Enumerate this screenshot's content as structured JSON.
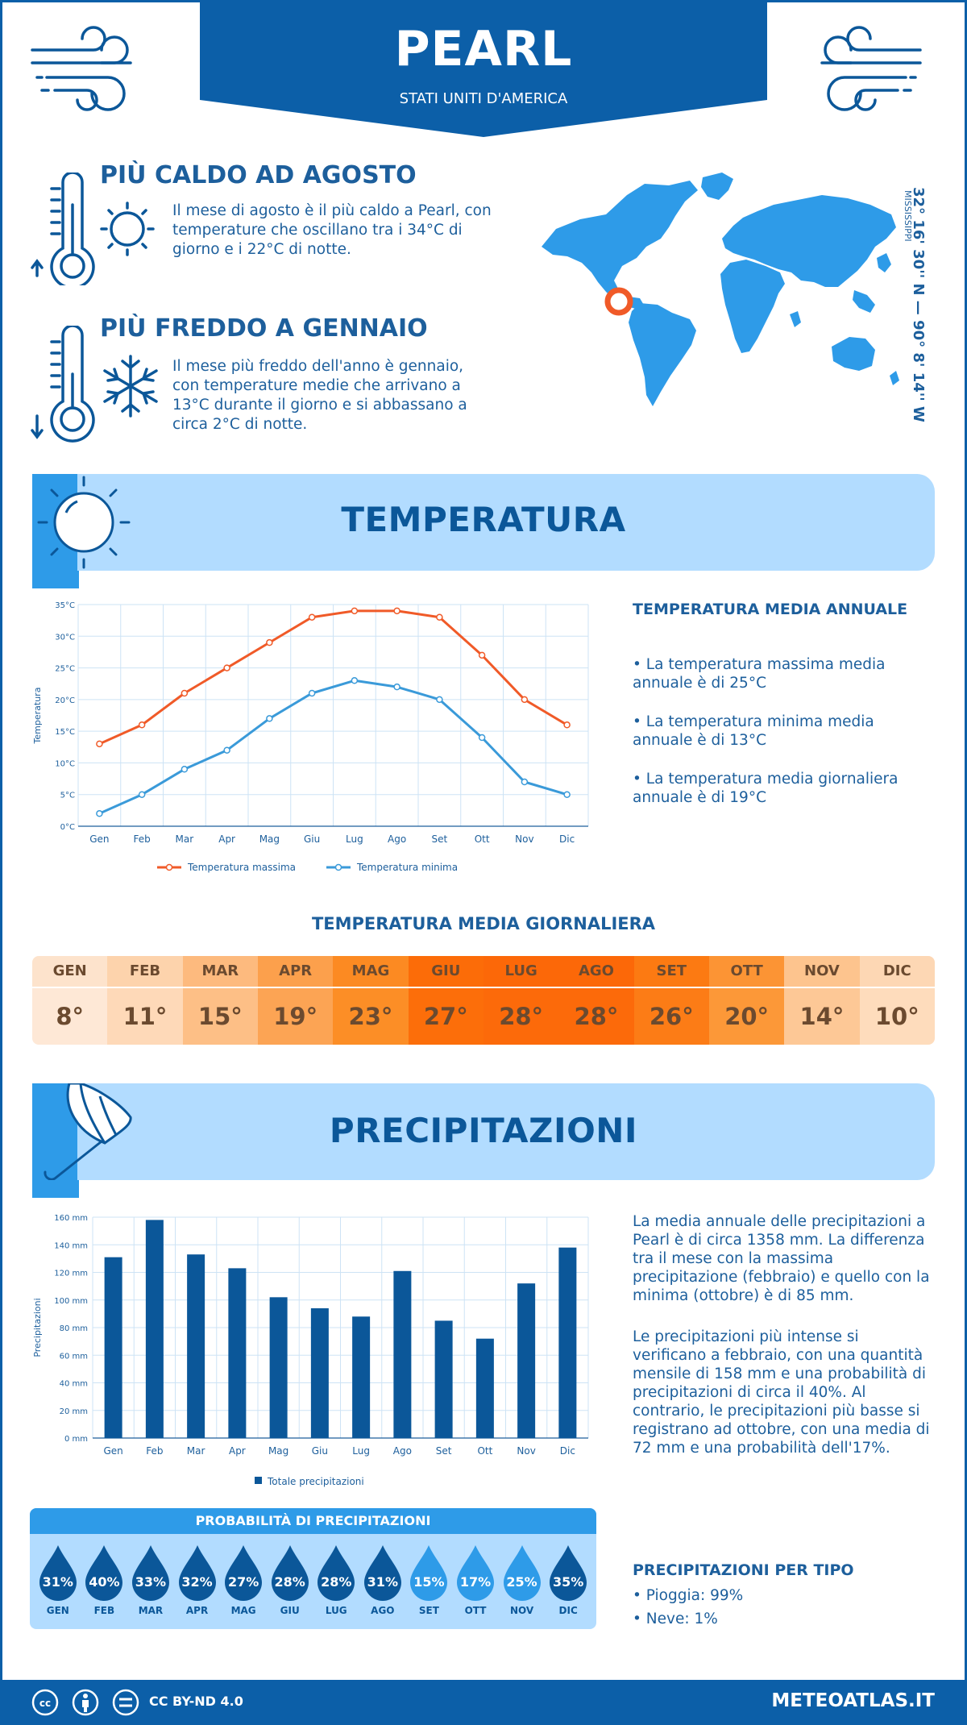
{
  "header": {
    "city": "PEARL",
    "country": "STATI UNITI D'AMERICA"
  },
  "location": {
    "coords": "32° 16' 30'' N — 90° 8' 14'' W",
    "state": "MISSISSIPPI"
  },
  "hottest": {
    "title": "PIÙ CALDO AD AGOSTO",
    "text": "Il mese di agosto è il più caldo a Pearl, con temperature che oscillano tra i 34°C di giorno e i 22°C di notte."
  },
  "coldest": {
    "title": "PIÙ FREDDO A GENNAIO",
    "text": "Il mese più freddo dell'anno è gennaio, con temperature medie che arrivano a 13°C durante il giorno e si abbassano a circa 2°C di notte."
  },
  "temperature_section": {
    "title": "TEMPERATURA",
    "annual_title": "TEMPERATURA MEDIA ANNUALE",
    "bullets": [
      "• La temperatura massima media annuale è di 25°C",
      "• La temperatura minima media annuale è di 13°C",
      "• La temperatura media giornaliera annuale è di 19°C"
    ]
  },
  "daily": {
    "title": "TEMPERATURA MEDIA GIORNALIERA",
    "months": [
      "GEN",
      "FEB",
      "MAR",
      "APR",
      "MAG",
      "GIU",
      "LUG",
      "AGO",
      "SET",
      "OTT",
      "NOV",
      "DIC"
    ],
    "values": [
      "8°",
      "11°",
      "15°",
      "19°",
      "23°",
      "27°",
      "28°",
      "28°",
      "26°",
      "20°",
      "14°",
      "10°"
    ],
    "head_colors": [
      "#fde3cc",
      "#fdd3ac",
      "#fdba7e",
      "#fca04c",
      "#fc8a22",
      "#fc6c08",
      "#fc6808",
      "#fc6808",
      "#fc7a12",
      "#fc9434",
      "#fdc48e",
      "#fdd7b4"
    ],
    "val_colors": [
      "#fee8d6",
      "#fed9b8",
      "#fdbf86",
      "#fca454",
      "#fc8e26",
      "#fc6e0a",
      "#fc6a0a",
      "#fc6a0a",
      "#fc7c16",
      "#fc9838",
      "#fdc896",
      "#fedcbc"
    ]
  },
  "precip_section": {
    "title": "PRECIPITAZIONI",
    "text1": "La media annuale delle precipitazioni a Pearl è di circa 1358 mm. La differenza tra il mese con la massima precipitazione (febbraio) e quello con la minima (ottobre) è di 85 mm.",
    "text2": "Le precipitazioni più intense si verificano a febbraio, con una quantità mensile di 158 mm e una probabilità di precipitazioni di circa il 40%. Al contrario, le precipitazioni più basse si registrano ad ottobre, con una media di 72 mm e una probabilità dell'17%.",
    "type_title": "PRECIPITAZIONI PER TIPO",
    "types": [
      "• Pioggia: 99%",
      "• Neve: 1%"
    ]
  },
  "probability": {
    "title": "PROBABILITÀ DI PRECIPITAZIONI",
    "months": [
      "GEN",
      "FEB",
      "MAR",
      "APR",
      "MAG",
      "GIU",
      "LUG",
      "AGO",
      "SET",
      "OTT",
      "NOV",
      "DIC"
    ],
    "values": [
      "31%",
      "40%",
      "33%",
      "32%",
      "27%",
      "28%",
      "28%",
      "31%",
      "15%",
      "17%",
      "25%",
      "35%"
    ],
    "colors": [
      "#0b5799",
      "#0b5799",
      "#0b5799",
      "#0b5799",
      "#0b5799",
      "#0b5799",
      "#0b5799",
      "#0b5799",
      "#2e9be8",
      "#2e9be8",
      "#2e9be8",
      "#0b5799"
    ]
  },
  "footer": {
    "license": "CC BY-ND 4.0",
    "site": "METEOATLAS.IT"
  },
  "chart_data": [
    {
      "type": "line",
      "categories": [
        "Gen",
        "Feb",
        "Mar",
        "Apr",
        "Mag",
        "Giu",
        "Lug",
        "Ago",
        "Set",
        "Ott",
        "Nov",
        "Dic"
      ],
      "series": [
        {
          "name": "Temperatura massima",
          "values": [
            13,
            16,
            21,
            25,
            29,
            33,
            34,
            34,
            33,
            27,
            20,
            16
          ],
          "color": "#f05a28"
        },
        {
          "name": "Temperatura minima",
          "values": [
            2,
            5,
            9,
            12,
            17,
            21,
            23,
            22,
            20,
            14,
            7,
            5
          ],
          "color": "#3a9ad9"
        }
      ],
      "ylabel": "Temperatura",
      "yticks": [
        "0°C",
        "5°C",
        "10°C",
        "15°C",
        "20°C",
        "25°C",
        "30°C",
        "35°C"
      ],
      "ylim": [
        0,
        35
      ],
      "grid": true,
      "legend": "bottom"
    },
    {
      "type": "bar",
      "categories": [
        "Gen",
        "Feb",
        "Mar",
        "Apr",
        "Mag",
        "Giu",
        "Lug",
        "Ago",
        "Set",
        "Ott",
        "Nov",
        "Dic"
      ],
      "series": [
        {
          "name": "Totale precipitazioni",
          "values": [
            131,
            158,
            133,
            123,
            102,
            94,
            88,
            121,
            85,
            72,
            112,
            138
          ],
          "color": "#0b5799"
        }
      ],
      "ylabel": "Precipitazioni",
      "yticks": [
        "0 mm",
        "20 mm",
        "40 mm",
        "60 mm",
        "80 mm",
        "100 mm",
        "120 mm",
        "140 mm",
        "160 mm"
      ],
      "ylim": [
        0,
        160
      ],
      "grid": true,
      "legend": "bottom"
    }
  ]
}
